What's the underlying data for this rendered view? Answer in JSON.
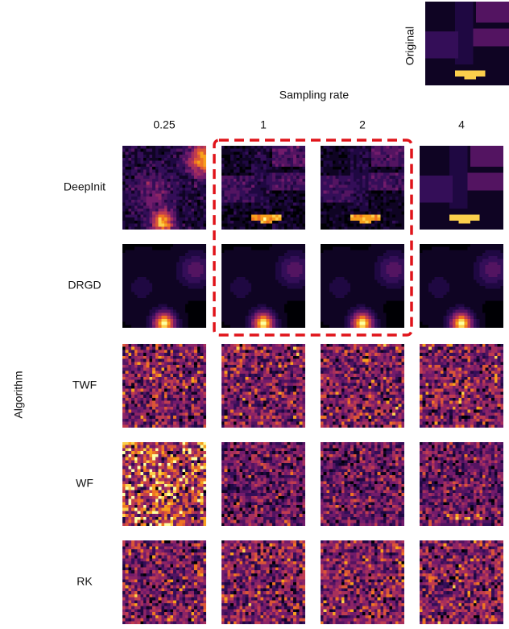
{
  "figure": {
    "original_label": "Original",
    "x_axis_title": "Sampling rate",
    "y_axis_title": "Algorithm",
    "columns": [
      "0.25",
      "1",
      "2",
      "4"
    ],
    "rows": [
      "DeepInit",
      "DRGD",
      "TWF",
      "WF",
      "RK"
    ]
  }
}
